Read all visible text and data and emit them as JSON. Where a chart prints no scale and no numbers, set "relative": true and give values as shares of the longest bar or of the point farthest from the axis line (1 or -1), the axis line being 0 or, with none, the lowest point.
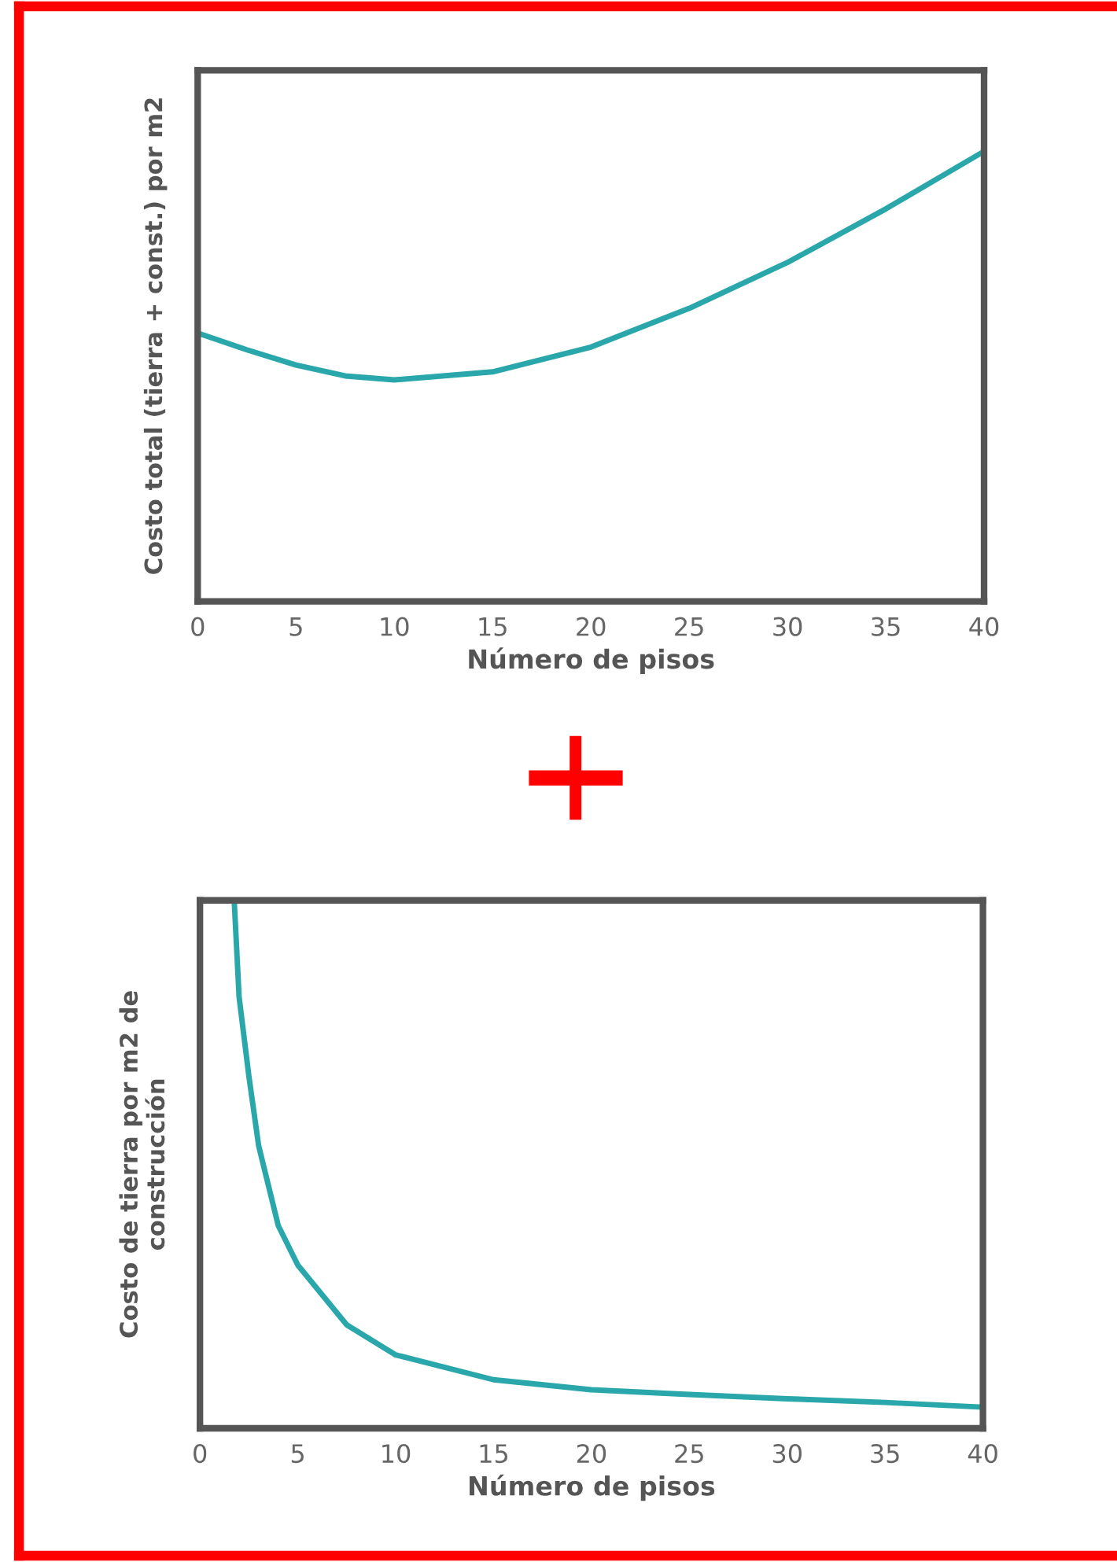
{
  "chart_data": [
    {
      "type": "line",
      "relative": true,
      "xlabel": "Número de pisos",
      "ylabel": "Costo total (tierra + const.) por m2",
      "xlim": [
        0,
        40
      ],
      "xticks": [
        0,
        5,
        10,
        15,
        20,
        25,
        30,
        35,
        40
      ],
      "series": [
        {
          "color": "#2aa7ab",
          "x": [
            0,
            2.5,
            5,
            7.5,
            10,
            15,
            20,
            25,
            30,
            35,
            40
          ],
          "values": [
            0.596,
            0.559,
            0.525,
            0.501,
            0.492,
            0.51,
            0.565,
            0.651,
            0.753,
            0.872,
            1.0
          ]
        }
      ]
    },
    {
      "type": "line",
      "relative": true,
      "xlabel": "Número de pisos",
      "ylabel": "Costo de tierra por m2 de\nconstrucción",
      "xlim": [
        0,
        40
      ],
      "xticks": [
        0,
        5,
        10,
        15,
        20,
        25,
        30,
        35,
        40
      ],
      "series": [
        {
          "color": "#2aa7ab",
          "x": [
            1.75,
            2,
            2.5,
            3,
            4,
            5,
            7.5,
            10,
            15,
            20,
            25,
            30,
            35,
            40
          ],
          "values": [
            1.0,
            0.817,
            0.667,
            0.535,
            0.384,
            0.309,
            0.196,
            0.139,
            0.092,
            0.073,
            0.064,
            0.056,
            0.049,
            0.04
          ]
        }
      ]
    }
  ]
}
